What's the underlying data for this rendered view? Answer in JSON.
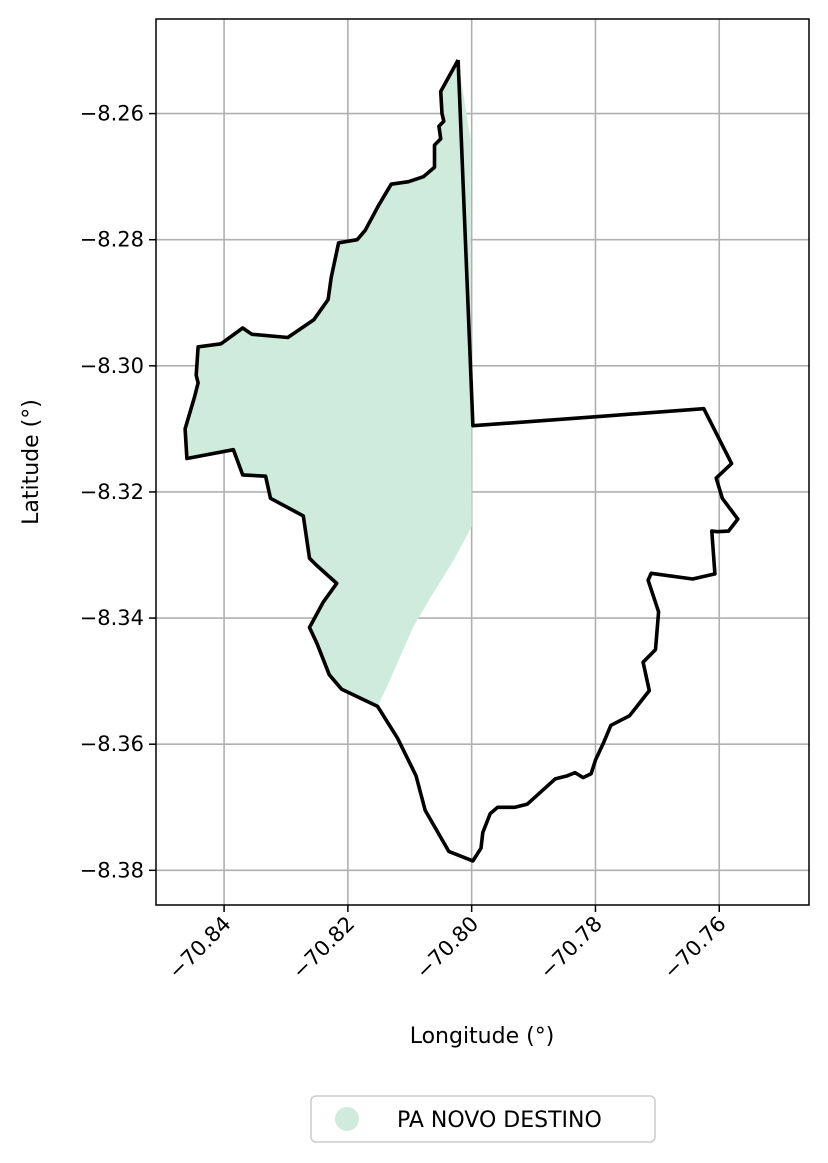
{
  "chart_data": {
    "type": "map",
    "xlabel": "Longitude (°)",
    "ylabel": "Latitude (°)",
    "xlim": [
      -70.851,
      -70.7455
    ],
    "ylim": [
      -8.3855,
      -8.245
    ],
    "x_ticks": [
      -70.84,
      -70.82,
      -70.8,
      -70.78,
      -70.76
    ],
    "y_ticks": [
      -8.26,
      -8.28,
      -8.3,
      -8.32,
      -8.34,
      -8.36,
      -8.38
    ],
    "x_tick_labels": [
      "−70.84",
      "−70.82",
      "−70.80",
      "−70.78",
      "−70.76"
    ],
    "y_tick_labels": [
      "−8.26",
      "−8.28",
      "−8.30",
      "−8.32",
      "−8.34",
      "−8.36",
      "−8.38"
    ],
    "grid": true,
    "legend": {
      "placement": "bottom-center",
      "entries": [
        {
          "label": "PA NOVO DESTINO",
          "color": "#cfebde"
        }
      ]
    },
    "colors": {
      "fill": "#cfebde",
      "outline": "#000000",
      "grid": "#b0b0b0"
    },
    "filled_region": [
      [
        -70.8022,
        -8.2515
      ],
      [
        -70.8002,
        -8.264
      ],
      [
        -70.8,
        -8.3255
      ],
      [
        -70.803,
        -8.331
      ],
      [
        -70.8065,
        -8.3365
      ],
      [
        -70.8095,
        -8.3415
      ],
      [
        -70.8135,
        -8.3505
      ],
      [
        -70.8152,
        -8.354
      ],
      [
        -70.821,
        -8.3513
      ],
      [
        -70.823,
        -8.349
      ],
      [
        -70.825,
        -8.344
      ],
      [
        -70.8262,
        -8.3415
      ],
      [
        -70.824,
        -8.3375
      ],
      [
        -70.8218,
        -8.3345
      ],
      [
        -70.8252,
        -8.3315
      ],
      [
        -70.8262,
        -8.3305
      ],
      [
        -70.8272,
        -8.3238
      ],
      [
        -70.8325,
        -8.321
      ],
      [
        -70.8333,
        -8.3175
      ],
      [
        -70.837,
        -8.3173
      ],
      [
        -70.8385,
        -8.3133
      ],
      [
        -70.846,
        -8.3147
      ],
      [
        -70.8463,
        -8.31
      ],
      [
        -70.8448,
        -8.305
      ],
      [
        -70.8442,
        -8.3027
      ],
      [
        -70.8445,
        -8.3015
      ],
      [
        -70.8442,
        -8.297
      ],
      [
        -70.8405,
        -8.2965
      ],
      [
        -70.837,
        -8.294
      ],
      [
        -70.8355,
        -8.295
      ],
      [
        -70.8297,
        -8.2955
      ],
      [
        -70.8255,
        -8.2927
      ],
      [
        -70.8232,
        -8.2895
      ],
      [
        -70.8227,
        -8.286
      ],
      [
        -70.8215,
        -8.2805
      ],
      [
        -70.8185,
        -8.28
      ],
      [
        -70.8172,
        -8.2785
      ],
      [
        -70.815,
        -8.2745
      ],
      [
        -70.813,
        -8.2712
      ],
      [
        -70.8102,
        -8.2708
      ],
      [
        -70.8078,
        -8.27
      ],
      [
        -70.806,
        -8.2685
      ],
      [
        -70.806,
        -8.265
      ],
      [
        -70.805,
        -8.264
      ],
      [
        -70.8053,
        -8.262
      ],
      [
        -70.8045,
        -8.2612
      ],
      [
        -70.8048,
        -8.26
      ],
      [
        -70.805,
        -8.2565
      ],
      [
        -70.8022,
        -8.2515
      ]
    ],
    "boundary": [
      [
        -70.8022,
        -8.2515
      ],
      [
        -70.7998,
        -8.3095
      ],
      [
        -70.779,
        -8.308
      ],
      [
        -70.7625,
        -8.3068
      ],
      [
        -70.758,
        -8.3155
      ],
      [
        -70.7605,
        -8.3178
      ],
      [
        -70.7595,
        -8.321
      ],
      [
        -70.757,
        -8.3243
      ],
      [
        -70.7585,
        -8.3262
      ],
      [
        -70.7603,
        -8.3263
      ],
      [
        -70.7612,
        -8.3262
      ],
      [
        -70.7607,
        -8.333
      ],
      [
        -70.7643,
        -8.3338
      ],
      [
        -70.771,
        -8.3329
      ],
      [
        -70.7715,
        -8.334
      ],
      [
        -70.7698,
        -8.339
      ],
      [
        -70.7703,
        -8.345
      ],
      [
        -70.7723,
        -8.347
      ],
      [
        -70.7713,
        -8.3515
      ],
      [
        -70.7745,
        -8.3555
      ],
      [
        -70.7775,
        -8.357
      ],
      [
        -70.7787,
        -8.3598
      ],
      [
        -70.78,
        -8.3625
      ],
      [
        -70.7807,
        -8.3647
      ],
      [
        -70.782,
        -8.3653
      ],
      [
        -70.7833,
        -8.3645
      ],
      [
        -70.7845,
        -8.365
      ],
      [
        -70.7865,
        -8.3655
      ],
      [
        -70.7893,
        -8.368
      ],
      [
        -70.791,
        -8.3695
      ],
      [
        -70.793,
        -8.37
      ],
      [
        -70.7958,
        -8.37
      ],
      [
        -70.797,
        -8.371
      ],
      [
        -70.7982,
        -8.374
      ],
      [
        -70.7985,
        -8.3765
      ],
      [
        -70.7998,
        -8.3785
      ],
      [
        -70.8037,
        -8.377
      ],
      [
        -70.8075,
        -8.3705
      ],
      [
        -70.809,
        -8.365
      ],
      [
        -70.812,
        -8.359
      ],
      [
        -70.8152,
        -8.354
      ],
      [
        -70.821,
        -8.3513
      ],
      [
        -70.823,
        -8.349
      ],
      [
        -70.825,
        -8.344
      ],
      [
        -70.8262,
        -8.3415
      ],
      [
        -70.824,
        -8.3375
      ],
      [
        -70.8218,
        -8.3345
      ],
      [
        -70.8252,
        -8.3315
      ],
      [
        -70.8262,
        -8.3305
      ],
      [
        -70.8272,
        -8.3238
      ],
      [
        -70.8325,
        -8.321
      ],
      [
        -70.8333,
        -8.3175
      ],
      [
        -70.837,
        -8.3173
      ],
      [
        -70.8385,
        -8.3133
      ],
      [
        -70.846,
        -8.3147
      ],
      [
        -70.8463,
        -8.31
      ],
      [
        -70.8448,
        -8.305
      ],
      [
        -70.8442,
        -8.3027
      ],
      [
        -70.8445,
        -8.3015
      ],
      [
        -70.8442,
        -8.297
      ],
      [
        -70.8405,
        -8.2965
      ],
      [
        -70.837,
        -8.294
      ],
      [
        -70.8355,
        -8.295
      ],
      [
        -70.8297,
        -8.2955
      ],
      [
        -70.8255,
        -8.2927
      ],
      [
        -70.8232,
        -8.2895
      ],
      [
        -70.8227,
        -8.286
      ],
      [
        -70.8215,
        -8.2805
      ],
      [
        -70.8185,
        -8.28
      ],
      [
        -70.8172,
        -8.2785
      ],
      [
        -70.815,
        -8.2745
      ],
      [
        -70.813,
        -8.2712
      ],
      [
        -70.8102,
        -8.2708
      ],
      [
        -70.8078,
        -8.27
      ],
      [
        -70.806,
        -8.2685
      ],
      [
        -70.806,
        -8.265
      ],
      [
        -70.805,
        -8.264
      ],
      [
        -70.8053,
        -8.262
      ],
      [
        -70.8045,
        -8.2612
      ],
      [
        -70.8048,
        -8.26
      ],
      [
        -70.805,
        -8.2565
      ],
      [
        -70.8022,
        -8.2515
      ]
    ]
  }
}
